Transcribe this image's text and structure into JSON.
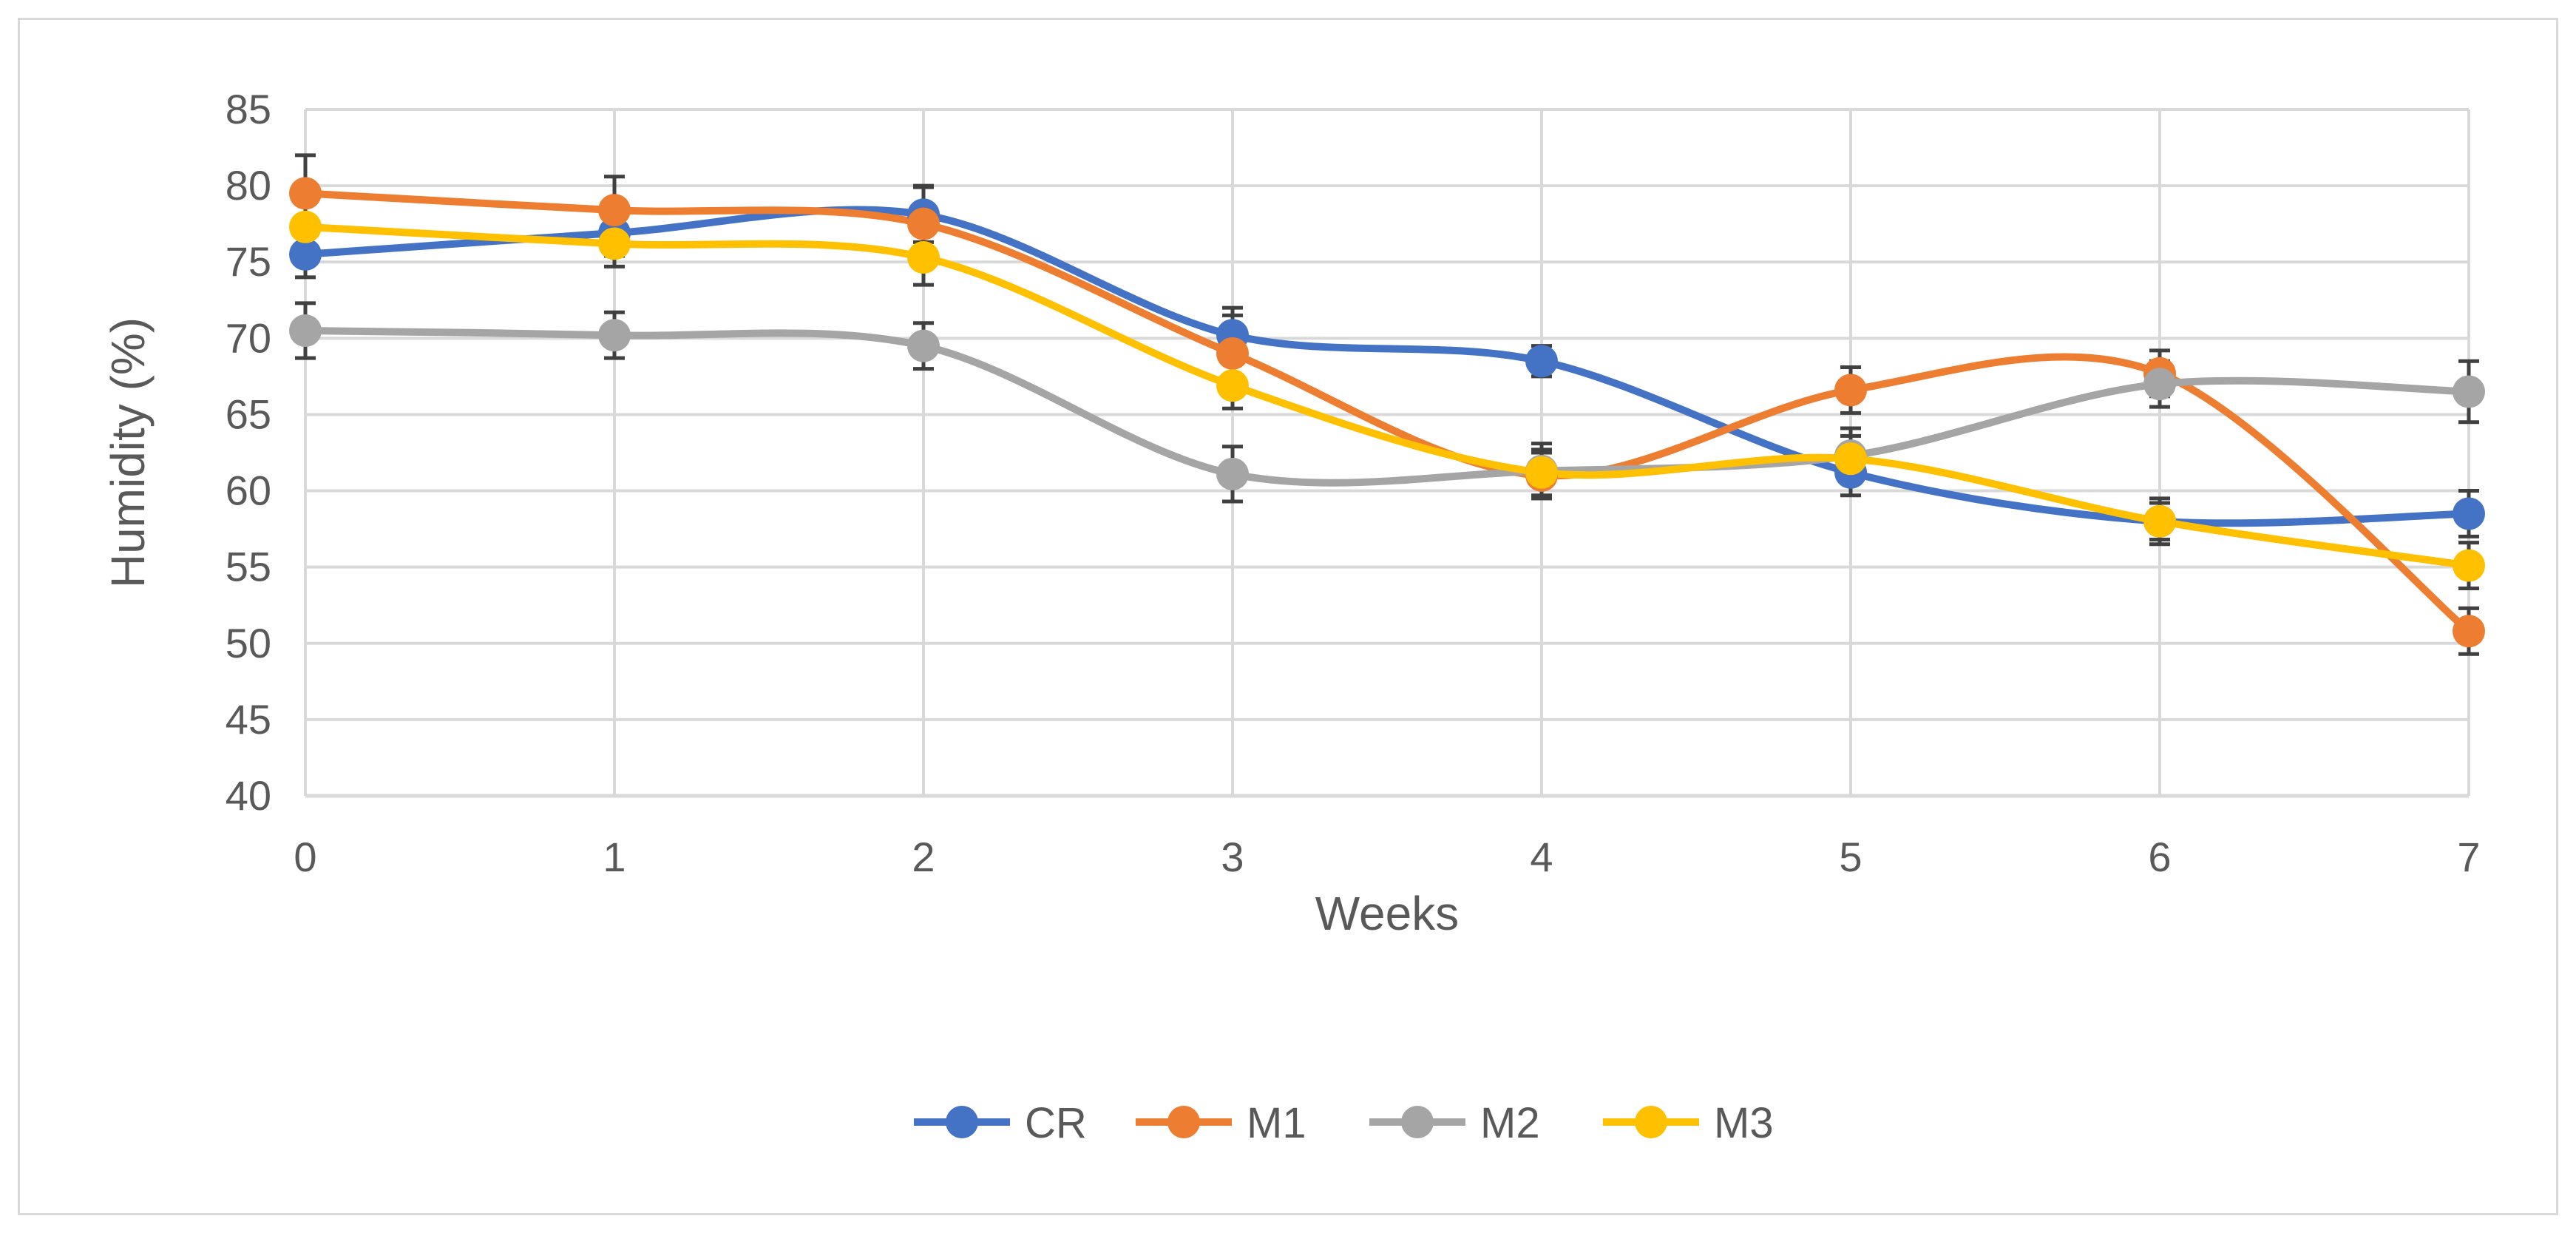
{
  "chart_data": {
    "type": "line",
    "title": "",
    "xlabel": "Weeks",
    "ylabel": "Humidity (%)",
    "xlim": [
      0,
      7
    ],
    "ylim": [
      40,
      85
    ],
    "ytick_step": 5,
    "grid": true,
    "smooth": true,
    "error_bars": true,
    "legend_position": "bottom",
    "x": [
      0,
      1,
      2,
      3,
      4,
      5,
      6,
      7
    ],
    "series": [
      {
        "name": "CR",
        "color": "#4472C4",
        "values": [
          75.5,
          76.9,
          78.1,
          70.2,
          68.5,
          61.2,
          58.0,
          58.5
        ],
        "errors": [
          1.5,
          1.5,
          1.8,
          1.8,
          1.0,
          1.5,
          1.2,
          1.5
        ]
      },
      {
        "name": "M1",
        "color": "#ED7D31",
        "values": [
          79.5,
          78.4,
          77.5,
          69.0,
          61.0,
          66.6,
          67.7,
          50.8
        ],
        "errors": [
          2.5,
          2.2,
          2.5,
          2.5,
          1.5,
          1.5,
          1.5,
          1.5
        ]
      },
      {
        "name": "M2",
        "color": "#A5A5A5",
        "values": [
          70.5,
          70.2,
          69.5,
          61.1,
          61.3,
          62.3,
          67.0,
          66.5
        ],
        "errors": [
          1.8,
          1.5,
          1.5,
          1.8,
          1.8,
          1.8,
          1.5,
          2.0
        ]
      },
      {
        "name": "M3",
        "color": "#FFC000",
        "values": [
          77.3,
          76.2,
          75.3,
          66.9,
          61.2,
          62.1,
          58.0,
          55.1
        ],
        "errors": [
          1.5,
          1.5,
          1.8,
          1.5,
          1.5,
          1.5,
          1.5,
          1.5
        ]
      }
    ]
  }
}
